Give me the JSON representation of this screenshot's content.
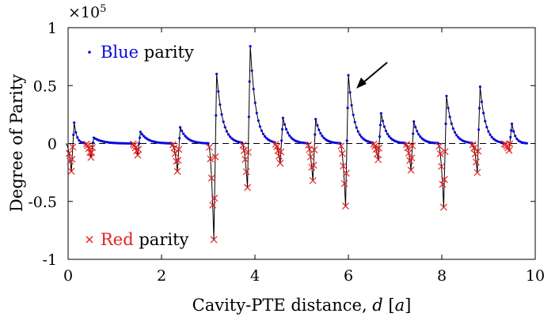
{
  "chart_data": {
    "type": "scatter",
    "xlabel_main": "Cavity-PTE distance, ",
    "xlabel_var": "d",
    "xlabel_unit_open": " [",
    "xlabel_unit_var": "a",
    "xlabel_unit_close": "]",
    "ylabel": "Degree of Parity",
    "multiplier_prefix": "×10",
    "multiplier_exp": "5",
    "xlim": [
      0,
      10
    ],
    "ylim": [
      -1,
      1
    ],
    "x_ticks": [
      "0",
      "2",
      "4",
      "6",
      "8",
      "10"
    ],
    "y_ticks": [
      "-1",
      "-0.5",
      "0",
      "0.5",
      "1"
    ],
    "zero_line": "dashed",
    "legend": {
      "blue_colored": "Blue",
      "blue_rest": " parity",
      "red_colored": "Red",
      "red_rest": " parity"
    },
    "annotation": "arrow pointing at peak near d = 6",
    "peaks": [
      {
        "x0": 0.13,
        "peak": 0.18,
        "trough": -0.24
      },
      {
        "x0": 0.55,
        "peak": 0.05,
        "trough": -0.12
      },
      {
        "x0": 1.55,
        "peak": 0.1,
        "trough": -0.1
      },
      {
        "x0": 2.4,
        "peak": 0.14,
        "trough": -0.24
      },
      {
        "x0": 3.18,
        "peak": 0.6,
        "trough": -0.83
      },
      {
        "x0": 3.9,
        "peak": 0.84,
        "trough": -0.38
      },
      {
        "x0": 4.6,
        "peak": 0.22,
        "trough": -0.17
      },
      {
        "x0": 5.3,
        "peak": 0.21,
        "trough": -0.32
      },
      {
        "x0": 6.0,
        "peak": 0.59,
        "trough": -0.54
      },
      {
        "x0": 6.7,
        "peak": 0.26,
        "trough": -0.14
      },
      {
        "x0": 7.4,
        "peak": 0.19,
        "trough": -0.23
      },
      {
        "x0": 8.1,
        "peak": 0.41,
        "trough": -0.55
      },
      {
        "x0": 8.82,
        "peak": 0.49,
        "trough": -0.25
      },
      {
        "x0": 9.5,
        "peak": 0.17,
        "trough": -0.06
      }
    ],
    "colors": {
      "blue": "#0a0adc",
      "red": "#e62020",
      "line": "#000000"
    }
  }
}
